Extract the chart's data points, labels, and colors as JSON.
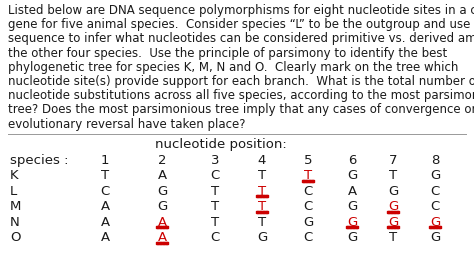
{
  "paragraph_lines": [
    "Listed below are DNA sequence polymorphisms for eight nucleotide sites in a certain",
    "gene for five animal species.  Consider species “L” to be the outgroup and use its",
    "sequence to infer what nucleotides can be considered primitive vs. derived among",
    "the other four species.  Use the principle of parsimony to identify the best",
    "phylogenetic tree for species K, M, N and O.  Clearly mark on the tree which",
    "nucleotide site(s) provide support for each branch.  What is the total number of",
    "nucleotide substitutions across all five species, according to the most parsimonious",
    "tree? Does the most parsimonious tree imply that any cases of convergence or",
    "evolutionary reversal have taken place?"
  ],
  "table_header": "nucleotide position:",
  "col_labels": [
    "species :",
    "1",
    "2",
    "3",
    "4",
    "5",
    "6",
    "7",
    "8"
  ],
  "rows": [
    {
      "species": "K",
      "nucleotides": [
        "T",
        "A",
        "C",
        "T",
        "T",
        "G",
        "T",
        "G"
      ],
      "red": [
        false,
        false,
        false,
        false,
        true,
        false,
        false,
        false
      ]
    },
    {
      "species": "L",
      "nucleotides": [
        "C",
        "G",
        "T",
        "T",
        "C",
        "A",
        "G",
        "C"
      ],
      "red": [
        false,
        false,
        false,
        true,
        false,
        false,
        false,
        false
      ]
    },
    {
      "species": "M",
      "nucleotides": [
        "A",
        "G",
        "T",
        "T",
        "C",
        "G",
        "G",
        "C"
      ],
      "red": [
        false,
        false,
        false,
        true,
        false,
        false,
        true,
        false
      ]
    },
    {
      "species": "N",
      "nucleotides": [
        "A",
        "A",
        "T",
        "T",
        "G",
        "G",
        "G",
        "G"
      ],
      "red": [
        false,
        true,
        false,
        false,
        false,
        true,
        true,
        true
      ]
    },
    {
      "species": "O",
      "nucleotides": [
        "A",
        "A",
        "C",
        "G",
        "C",
        "G",
        "T",
        "G"
      ],
      "red": [
        false,
        true,
        false,
        false,
        false,
        false,
        false,
        false
      ]
    }
  ],
  "bg_color": "#ffffff",
  "text_color": "#1a1a1a",
  "red_color": "#cc0000",
  "para_fontsize": 8.5,
  "table_fontsize": 9.5,
  "header_fontsize": 9.5
}
